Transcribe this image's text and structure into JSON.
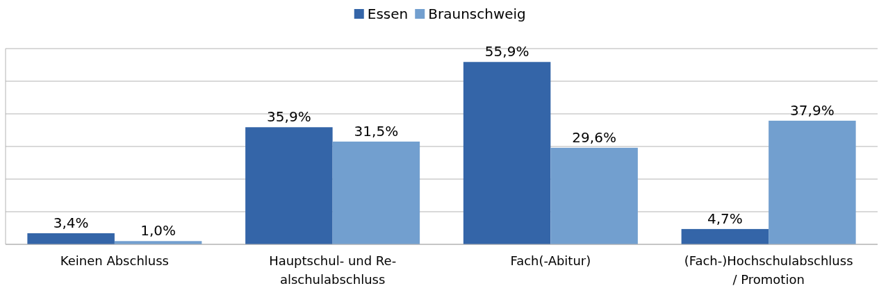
{
  "chart_data": {
    "type": "bar",
    "categories": [
      "Keinen Abschluss",
      "Hauptschul- und Re-\nalschulabschluss",
      "Fach(-Abitur)",
      "(Fach-)Hochschulabschluss\n/ Promotion"
    ],
    "series": [
      {
        "name": "Essen",
        "color": "#3465a8",
        "values": [
          3.4,
          35.9,
          55.9,
          4.7
        ],
        "value_labels": [
          "3,4%",
          "35,9%",
          "55,9%",
          "4,7%"
        ]
      },
      {
        "name": "Braunschweig",
        "color": "#729fcf",
        "values": [
          1.0,
          31.5,
          29.6,
          37.9
        ],
        "value_labels": [
          "1,0%",
          "31,5%",
          "29,6%",
          "37,9%"
        ]
      }
    ],
    "ylim": [
      0,
      60
    ],
    "yticks": [
      {
        "value": 0,
        "label": null
      },
      {
        "value": 10,
        "label": null
      },
      {
        "value": 20,
        "label": null
      },
      {
        "value": 30,
        "label": null
      },
      {
        "value": 40,
        "label": null
      },
      {
        "value": 50,
        "label": null
      },
      {
        "value": 60,
        "label": null
      }
    ],
    "tick_labels": "x",
    "grid": "y",
    "legend": "top"
  }
}
